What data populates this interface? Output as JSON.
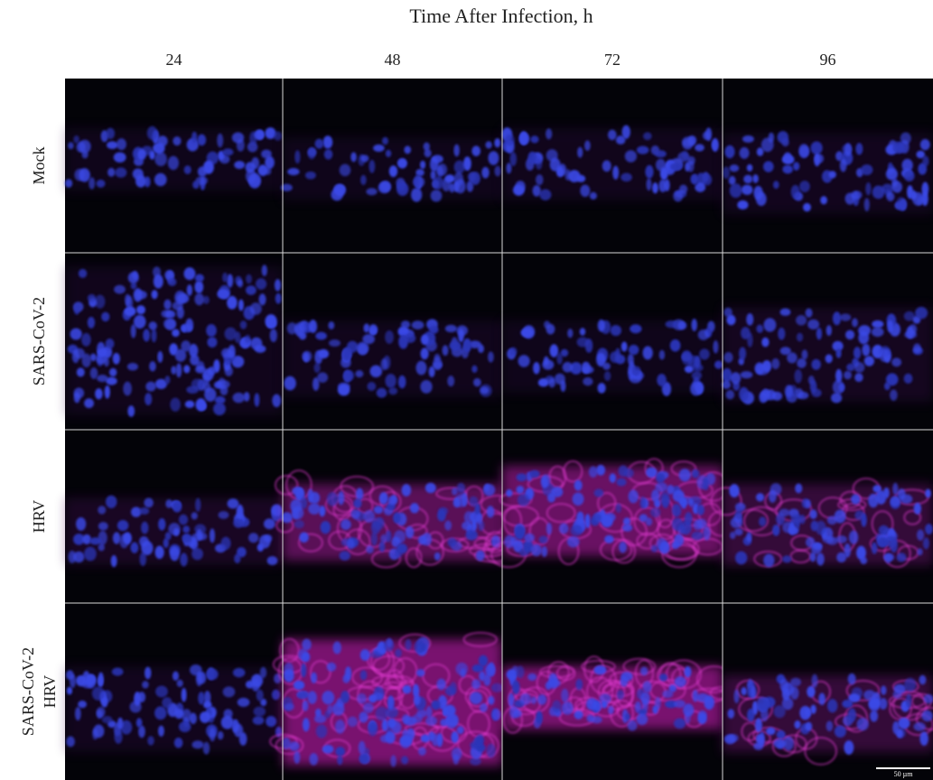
{
  "header": {
    "title": "Time After Infection, h"
  },
  "columns": [
    "24",
    "48",
    "72",
    "96"
  ],
  "rows": [
    {
      "label": [
        "Mock"
      ]
    },
    {
      "label": [
        "SARS-CoV-2"
      ]
    },
    {
      "label": [
        "HRV"
      ]
    },
    {
      "label": [
        "SARS-CoV-2",
        "HRV"
      ]
    }
  ],
  "scale_bar": "50 µm"
}
